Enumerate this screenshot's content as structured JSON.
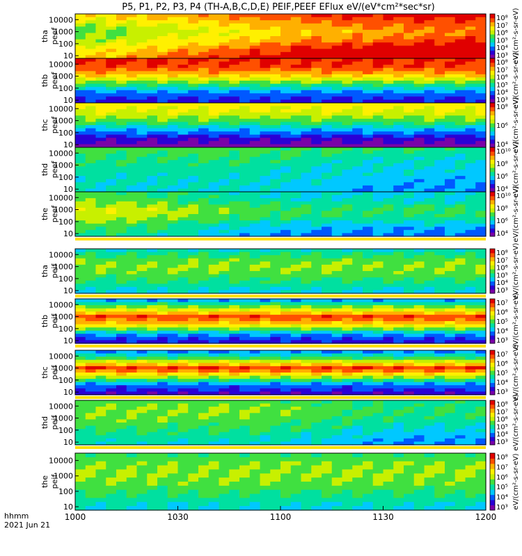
{
  "title": "P5, P1, P2, P3, P4 (TH-A,B,C,D,E) PEIF,PEEF EFlux eV/(eV*cm²*sec*sr)",
  "time_axis": {
    "label_line1": "hhmm",
    "label_line2": "2021 Jun 21",
    "ticks": [
      "1000",
      "1030",
      "1100",
      "1130",
      "1200"
    ],
    "tick_minutes": [
      0,
      30,
      60,
      90,
      120
    ],
    "range_minutes": [
      0,
      120
    ]
  },
  "energy_axis": {
    "scale": "log",
    "range_eV": [
      6,
      30000
    ],
    "ticks": [
      "10000",
      "1000",
      "100",
      "10"
    ],
    "tick_values": [
      10000,
      1000,
      100,
      10
    ]
  },
  "colormap": [
    "#7a00a8",
    "#2a00d6",
    "#0058ff",
    "#00c8ff",
    "#00e0a0",
    "#40e040",
    "#c8f000",
    "#fff000",
    "#ffb000",
    "#ff5000",
    "#e00000"
  ],
  "chart_data": [
    {
      "type": "heatmap",
      "probe": "tha",
      "species": "peef",
      "ylabel1": "tha",
      "ylabel2": "peef",
      "colorbar_unit": "eV/(cm²-s-sr-eV)",
      "colorbar_ticks": [
        "10⁸",
        "10⁷",
        "10⁶",
        "10⁵",
        "10⁴",
        "10³"
      ],
      "level_profile": [
        0.7,
        0.58,
        0.5,
        0.55,
        0.65,
        0.72
      ],
      "trend": [
        0.0,
        0.1,
        0.2,
        0.3,
        0.35,
        0.4
      ],
      "gap_below": false
    },
    {
      "type": "heatmap",
      "probe": "thb",
      "species": "peef",
      "ylabel1": "thb",
      "ylabel2": "peef",
      "colorbar_unit": "eV/(cm²-s-sr-eV)",
      "colorbar_ticks": [
        "10⁸",
        "10⁷",
        "10⁶",
        "10⁵",
        "10⁴",
        "10³"
      ],
      "level_profile": [
        0.92,
        0.88,
        0.7,
        0.45,
        0.25,
        0.15
      ],
      "trend": [
        0,
        0,
        0,
        0,
        0,
        0
      ],
      "gap_below": false
    },
    {
      "type": "heatmap",
      "probe": "thc",
      "species": "peef",
      "ylabel1": "thc",
      "ylabel2": "peef",
      "colorbar_unit": "eV/(cm²-s-sr-eV)",
      "colorbar_ticks": [
        "10⁸",
        "10⁶",
        "10⁴"
      ],
      "level_profile": [
        0.68,
        0.62,
        0.5,
        0.32,
        0.14,
        0.05
      ],
      "trend": [
        0,
        0,
        0,
        0,
        0,
        0
      ],
      "gap_below": false
    },
    {
      "type": "heatmap",
      "probe": "thd",
      "species": "peef",
      "ylabel1": "thd",
      "ylabel2": "peef",
      "colorbar_unit": "eV/(cm²-s-sr-eV)",
      "colorbar_ticks": [
        "10¹⁰",
        "10⁸",
        "10⁶",
        "10⁴"
      ],
      "level_profile": [
        0.5,
        0.46,
        0.42,
        0.4,
        0.38,
        0.36
      ],
      "trend": [
        0,
        0,
        0,
        -0.05,
        -0.08,
        -0.1
      ],
      "gap_below": false
    },
    {
      "type": "heatmap",
      "probe": "the",
      "species": "peef",
      "ylabel1": "the",
      "ylabel2": "peef",
      "colorbar_unit": "eV/(cm²-s-sr-eV)",
      "colorbar_ticks": [
        "10¹⁰",
        "10⁸",
        "10⁶",
        "10⁴"
      ],
      "level_profile": [
        0.45,
        0.5,
        0.6,
        0.55,
        0.45,
        0.4
      ],
      "trend": [
        0.05,
        0,
        -0.1,
        -0.15,
        -0.15,
        -0.15
      ],
      "gap_below": true
    },
    {
      "type": "heatmap",
      "probe": "tha",
      "species": "peif",
      "ylabel1": "tha",
      "ylabel2": "peif",
      "colorbar_unit": "eV/(cm²-s-sr-eV)",
      "colorbar_ticks": [
        "10⁸",
        "10⁷",
        "10⁶",
        "10⁵",
        "10⁴",
        "10³"
      ],
      "level_profile": [
        0.38,
        0.5,
        0.55,
        0.5,
        0.42,
        0.35
      ],
      "trend": [
        0,
        0,
        0,
        0,
        0,
        0
      ],
      "gap_below": true
    },
    {
      "type": "heatmap",
      "probe": "thb",
      "species": "peif",
      "ylabel1": "thb",
      "ylabel2": "peif",
      "colorbar_unit": "eV/(cm²-s-sr-eV)",
      "colorbar_ticks": [
        "10⁷",
        "10⁶",
        "10⁵",
        "10⁴",
        "10³"
      ],
      "level_profile": [
        0.3,
        0.6,
        0.9,
        0.7,
        0.3,
        0.15
      ],
      "trend": [
        0,
        0,
        0,
        0,
        0,
        0
      ],
      "gap_below": true
    },
    {
      "type": "heatmap",
      "probe": "thc",
      "species": "peif",
      "ylabel1": "thc",
      "ylabel2": "peif",
      "colorbar_unit": "eV/(cm²-s-sr-eV)",
      "colorbar_ticks": [
        "10⁷",
        "10⁶",
        "10⁵",
        "10⁴",
        "10³"
      ],
      "level_profile": [
        0.28,
        0.55,
        0.92,
        0.6,
        0.25,
        0.12
      ],
      "trend": [
        0,
        0,
        0,
        0,
        0,
        0
      ],
      "gap_below": true
    },
    {
      "type": "heatmap",
      "probe": "thd",
      "species": "peif",
      "ylabel1": "thd",
      "ylabel2": "peif",
      "colorbar_unit": "eV/(cm²-s-sr-eV)",
      "colorbar_ticks": [
        "10⁸",
        "10⁷",
        "10⁶",
        "10⁵",
        "10⁴",
        "10³"
      ],
      "level_profile": [
        0.5,
        0.55,
        0.52,
        0.48,
        0.42,
        0.38
      ],
      "trend": [
        0,
        0,
        0,
        -0.05,
        -0.12,
        -0.12
      ],
      "gap_below": true
    },
    {
      "type": "heatmap",
      "probe": "the",
      "species": "peif",
      "ylabel1": "the",
      "ylabel2": "peif",
      "colorbar_unit": "eV/(cm²-s-sr-eV)",
      "colorbar_ticks": [
        "10⁸",
        "10⁷",
        "10⁶",
        "10⁵",
        "10⁴",
        "10³"
      ],
      "level_profile": [
        0.48,
        0.54,
        0.55,
        0.5,
        0.42,
        0.36
      ],
      "trend": [
        0,
        0,
        0,
        0,
        0,
        0
      ],
      "gap_below": false
    }
  ]
}
